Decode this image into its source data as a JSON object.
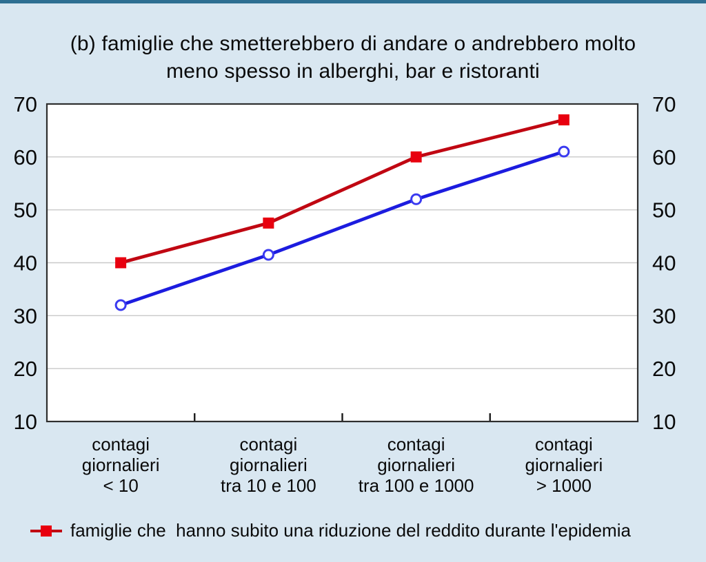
{
  "page": {
    "background_color": "#d9e7f1",
    "top_border_color": "#2e6f92"
  },
  "chart_data": {
    "type": "line",
    "title": "(b) famiglie che smetterebbero di andare o andrebbero molto meno spesso in alberghi, bar e ristoranti",
    "title_lines": [
      "(b) famiglie che smetterebbero di andare o andrebbero molto",
      "meno spesso in alberghi, bar e ristoranti"
    ],
    "categories": [
      "contagi giornalieri < 10",
      "contagi giornalieri tra 10 e 100",
      "contagi giornalieri tra 100 e 1000",
      "contagi giornalieri > 1000"
    ],
    "categories_multiline": [
      [
        "contagi",
        "giornalieri",
        "< 10"
      ],
      [
        "contagi",
        "giornalieri",
        "tra 10 e 100"
      ],
      [
        "contagi",
        "giornalieri",
        "tra 100 e 1000"
      ],
      [
        "contagi",
        "giornalieri",
        "> 1000"
      ]
    ],
    "series": [
      {
        "name": "famiglie che  hanno subito una riduzione del reddito durante l'epidemia",
        "values": [
          40,
          47.5,
          60,
          67
        ],
        "line_color": "#c00712",
        "marker": "filled-square",
        "marker_color": "#e8000f"
      },
      {
        "values": [
          32,
          41.5,
          52,
          61
        ],
        "line_color": "#1c1cdf",
        "marker": "open-circle",
        "marker_color": "#3a3af0"
      }
    ],
    "ylim": [
      10,
      70
    ],
    "yticks": [
      10,
      20,
      30,
      40,
      50,
      60,
      70
    ],
    "y_axis_sides": "both",
    "grid": "horizontal",
    "gridline_color": "#c9c9c9",
    "plot_background": "#ffffff",
    "plot_border_color": "#2e2e2e",
    "legend_position": "bottom-left"
  }
}
